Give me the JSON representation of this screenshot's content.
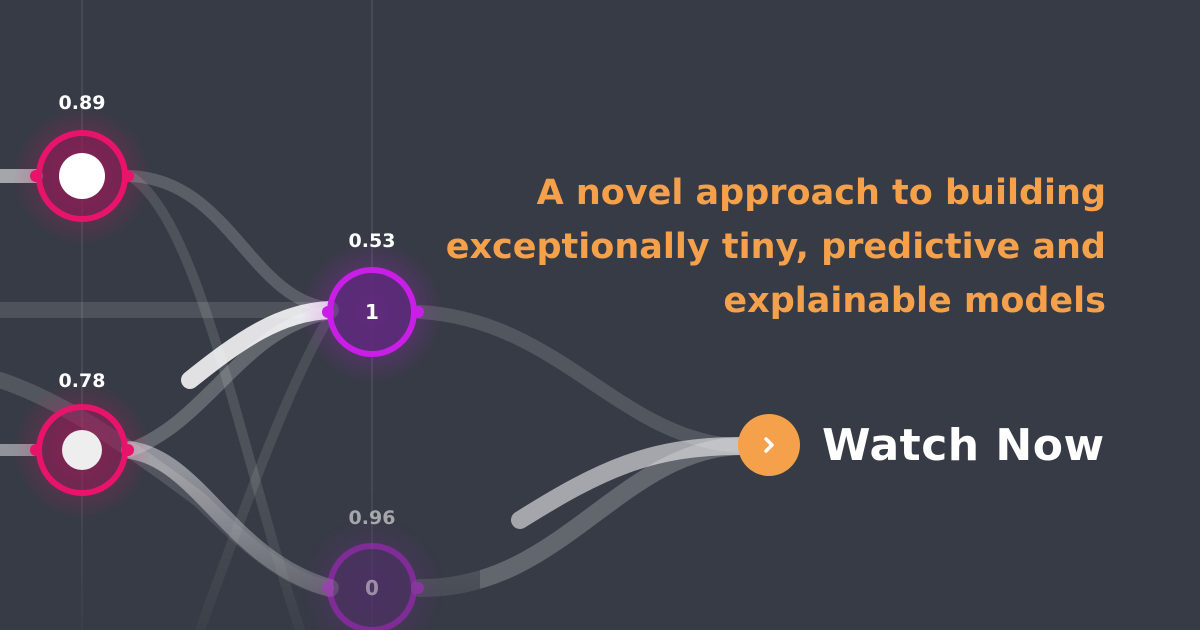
{
  "banner": {
    "headline_lines": [
      "A novel approach to building",
      "exceptionally tiny, predictive and",
      "explainable models"
    ],
    "cta_label": "Watch Now",
    "cta_icon": "chevron-right-icon"
  },
  "graph": {
    "nodes": [
      {
        "id": "n1",
        "value_label": "0.89",
        "inner_text": ""
      },
      {
        "id": "n2",
        "value_label": "0.78",
        "inner_text": ""
      },
      {
        "id": "n3",
        "value_label": "0.53",
        "inner_text": "1"
      },
      {
        "id": "n4",
        "value_label": "0.96",
        "inner_text": "0"
      }
    ]
  },
  "colors": {
    "background": "#363b45",
    "accent_orange": "#f5a04a",
    "node_pink": "#e8146c",
    "node_purple": "#c81ee6",
    "link_white": "#ffffff"
  }
}
